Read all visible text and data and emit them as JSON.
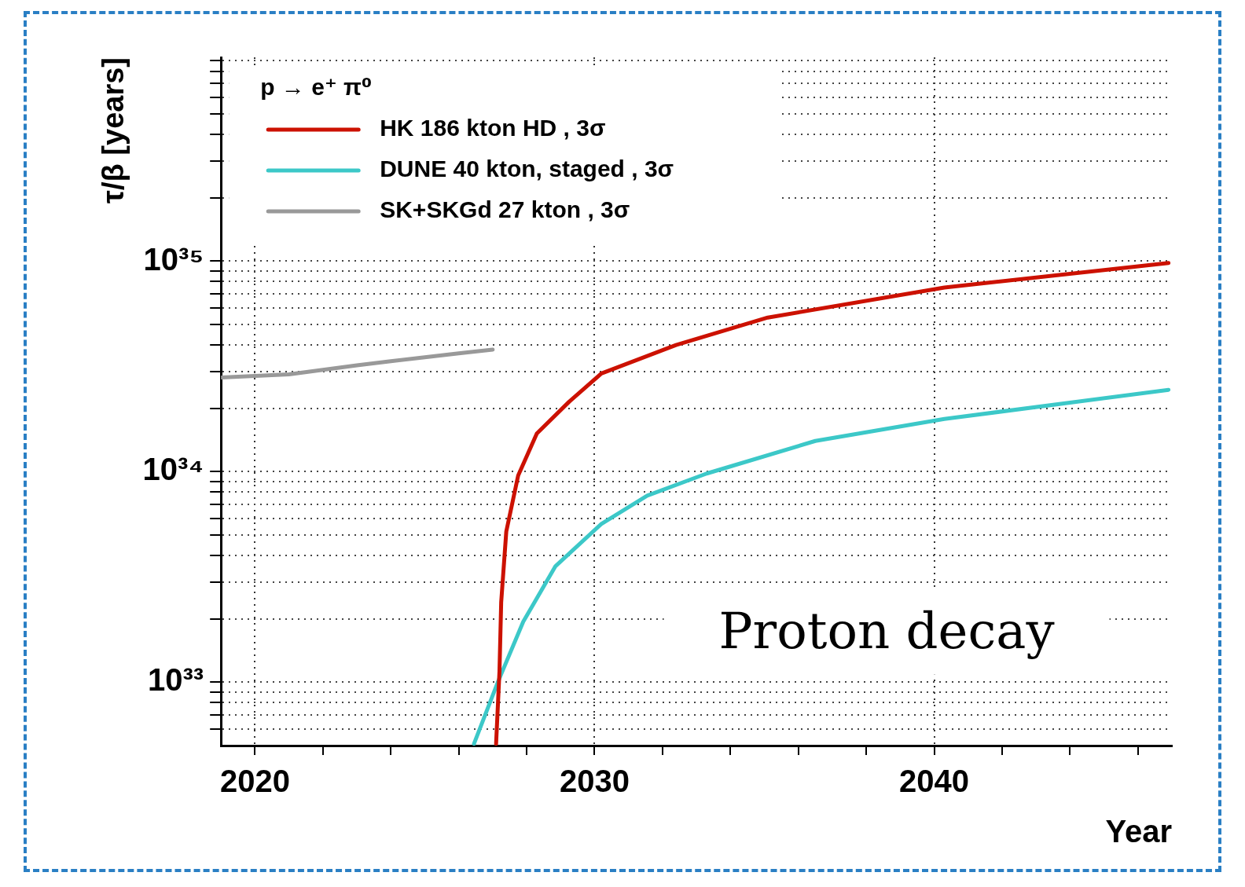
{
  "chart_data": {
    "type": "line",
    "xlabel": "Year",
    "ylabel": "τ/β [years]",
    "legend_title": "p → e⁺ π⁰",
    "legend": "top left",
    "grid": true,
    "log": "y",
    "marker": "none",
    "line_style": "solid",
    "xlim": [
      2019,
      2047
    ],
    "ylim": [
      5e+32,
      9.3e+35
    ],
    "xticks": [
      2020,
      {
        "value": 2022,
        "label": null
      },
      {
        "value": 2024,
        "label": null
      },
      {
        "value": 2026,
        "label": null
      },
      {
        "value": 2028,
        "label": null
      },
      2030,
      {
        "value": 2032,
        "label": null
      },
      {
        "value": 2034,
        "label": null
      },
      {
        "value": 2036,
        "label": null
      },
      {
        "value": 2038,
        "label": null
      },
      2040,
      {
        "value": 2042,
        "label": null
      },
      {
        "value": 2044,
        "label": null
      },
      {
        "value": 2046,
        "label": null
      }
    ],
    "yticks": [
      {
        "value": 6e+32,
        "label": null
      },
      {
        "value": 7e+32,
        "label": null
      },
      {
        "value": 8e+32,
        "label": null
      },
      {
        "value": 9e+32,
        "label": null
      },
      {
        "value": 1e+33,
        "label": "10³³"
      },
      {
        "value": 2e+33,
        "label": null
      },
      {
        "value": 3e+33,
        "label": null
      },
      {
        "value": 4e+33,
        "label": null
      },
      {
        "value": 5e+33,
        "label": null
      },
      {
        "value": 6e+33,
        "label": null
      },
      {
        "value": 7e+33,
        "label": null
      },
      {
        "value": 8e+33,
        "label": null
      },
      {
        "value": 9e+33,
        "label": null
      },
      {
        "value": 1e+34,
        "label": "10³⁴"
      },
      {
        "value": 2e+34,
        "label": null
      },
      {
        "value": 3e+34,
        "label": null
      },
      {
        "value": 4e+34,
        "label": null
      },
      {
        "value": 5e+34,
        "label": null
      },
      {
        "value": 6e+34,
        "label": null
      },
      {
        "value": 7e+34,
        "label": null
      },
      {
        "value": 8e+34,
        "label": null
      },
      {
        "value": 9e+34,
        "label": null
      },
      {
        "value": 1e+35,
        "label": "10³⁵"
      },
      {
        "value": 2e+35,
        "label": null
      },
      {
        "value": 3e+35,
        "label": null
      },
      {
        "value": 4e+35,
        "label": null
      },
      {
        "value": 5e+35,
        "label": null
      },
      {
        "value": 6e+35,
        "label": null
      },
      {
        "value": 7e+35,
        "label": null
      },
      {
        "value": 8e+35,
        "label": null
      },
      {
        "value": 9e+35,
        "label": null
      }
    ],
    "series": [
      {
        "name": "HK 186 kton HD , 3σ",
        "color": "#cc1100",
        "x": [
          2027.1,
          2027.2,
          2027.25,
          2027.4,
          2027.75,
          2028.3,
          2029.25,
          2030.2,
          2032.4,
          2035.1,
          2040.3,
          2046.9
        ],
        "values": [
          5.1e+32,
          1.13e+33,
          2.4e+33,
          5.2e+33,
          9.6e+33,
          1.52e+34,
          2.15e+34,
          2.93e+34,
          4e+34,
          5.4e+34,
          7.5e+34,
          9.8e+34
        ]
      },
      {
        "name": "DUNE 40 kton, staged , 3σ",
        "color": "#3cc8c8",
        "x": [
          2026.45,
          2027.15,
          2027.9,
          2028.85,
          2030.2,
          2031.55,
          2033.3,
          2036.5,
          2040.3,
          2046.9
        ],
        "values": [
          5.1e+32,
          1e+33,
          1.94e+33,
          3.56e+33,
          5.65e+33,
          7.7e+33,
          9.8e+33,
          1.4e+34,
          1.78e+34,
          2.45e+34
        ]
      },
      {
        "name": "SK+SKGd 27 kton , 3σ",
        "color": "#999999",
        "x": [
          2019,
          2020,
          2021,
          2022,
          2023,
          2024,
          2025,
          2026,
          2027
        ],
        "values": [
          2.8e+34,
          2.85e+34,
          2.9e+34,
          3.05e+34,
          3.2e+34,
          3.35e+34,
          3.5e+34,
          3.65e+34,
          3.8e+34
        ]
      }
    ],
    "annotations": [
      "Proton decay"
    ]
  }
}
